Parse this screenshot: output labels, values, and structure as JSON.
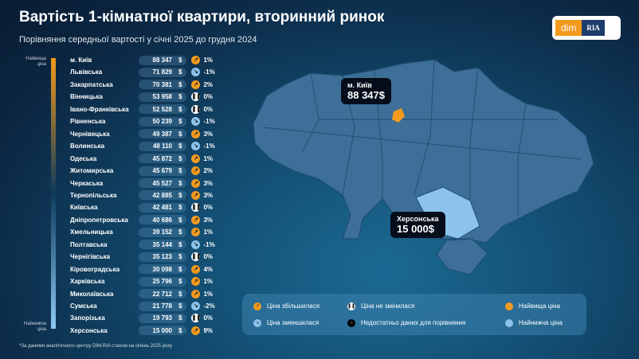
{
  "title": "Вартість 1-кімнатної квартири, вторинний ринок",
  "subtitle": "Порівняння середньої вартості у січні 2025 до грудня 2024",
  "logo": {
    "left": "dim",
    "right": "RIA"
  },
  "scale": {
    "top": "Найвища ціна",
    "bottom": "Найнижча ціна"
  },
  "currency": "$",
  "rows": [
    {
      "name": "м. Київ",
      "value": "88 347",
      "trend": "up",
      "pct": "1%"
    },
    {
      "name": "Львівська",
      "value": "71 829",
      "trend": "down",
      "pct": "-1%"
    },
    {
      "name": "Закарпатська",
      "value": "70 381",
      "trend": "up",
      "pct": "2%"
    },
    {
      "name": "Вінницька",
      "value": "53 958",
      "trend": "same",
      "pct": "0%"
    },
    {
      "name": "Івано-Франківська",
      "value": "52 528",
      "trend": "same",
      "pct": "0%"
    },
    {
      "name": "Рівненська",
      "value": "50 239",
      "trend": "down",
      "pct": "-1%"
    },
    {
      "name": "Чернівецька",
      "value": "49 387",
      "trend": "up",
      "pct": "3%"
    },
    {
      "name": "Волинська",
      "value": "48 110",
      "trend": "down",
      "pct": "-1%"
    },
    {
      "name": "Одеська",
      "value": "45 872",
      "trend": "up",
      "pct": "1%"
    },
    {
      "name": "Житомирська",
      "value": "45 679",
      "trend": "up",
      "pct": "2%"
    },
    {
      "name": "Черкаська",
      "value": "45 527",
      "trend": "up",
      "pct": "3%"
    },
    {
      "name": "Тернопільська",
      "value": "42 885",
      "trend": "up",
      "pct": "3%"
    },
    {
      "name": "Київська",
      "value": "42 481",
      "trend": "same",
      "pct": "0%"
    },
    {
      "name": "Дніпропетровська",
      "value": "40 686",
      "trend": "up",
      "pct": "3%"
    },
    {
      "name": "Хмельницька",
      "value": "39 152",
      "trend": "up",
      "pct": "1%"
    },
    {
      "name": "Полтавська",
      "value": "35 144",
      "trend": "down",
      "pct": "-1%"
    },
    {
      "name": "Чернігівська",
      "value": "35 123",
      "trend": "same",
      "pct": "0%"
    },
    {
      "name": "Кіровоградська",
      "value": "30 098",
      "trend": "up",
      "pct": "4%"
    },
    {
      "name": "Харківська",
      "value": "25 796",
      "trend": "up",
      "pct": "1%"
    },
    {
      "name": "Миколаївська",
      "value": "22 712",
      "trend": "up",
      "pct": "1%"
    },
    {
      "name": "Сумська",
      "value": "21 778",
      "trend": "down",
      "pct": "-2%"
    },
    {
      "name": "Запорізька",
      "value": "19 793",
      "trend": "same",
      "pct": "0%"
    },
    {
      "name": "Херсонська",
      "value": "15 000",
      "trend": "up",
      "pct": "9%"
    }
  ],
  "footnote": "*За даними аналітичного центру DIM.RIA станом на січень 2025 року",
  "map": {
    "highest": {
      "name": "м. Київ",
      "value": "88 347$"
    },
    "lowest": {
      "name": "Херсонська",
      "value": "15 000$"
    }
  },
  "legend": {
    "up": "Ціна збільшилася",
    "down": "Ціна зменшилася",
    "same": "Ціна не змінилася",
    "na": "Недостатньо даних для порівняння",
    "highest": "Найвища ціна",
    "lowest": "Найнижча ціна"
  },
  "colors": {
    "highest": "#f39a1d",
    "lowest": "#8cc3ec",
    "region": "#3d6f98"
  }
}
